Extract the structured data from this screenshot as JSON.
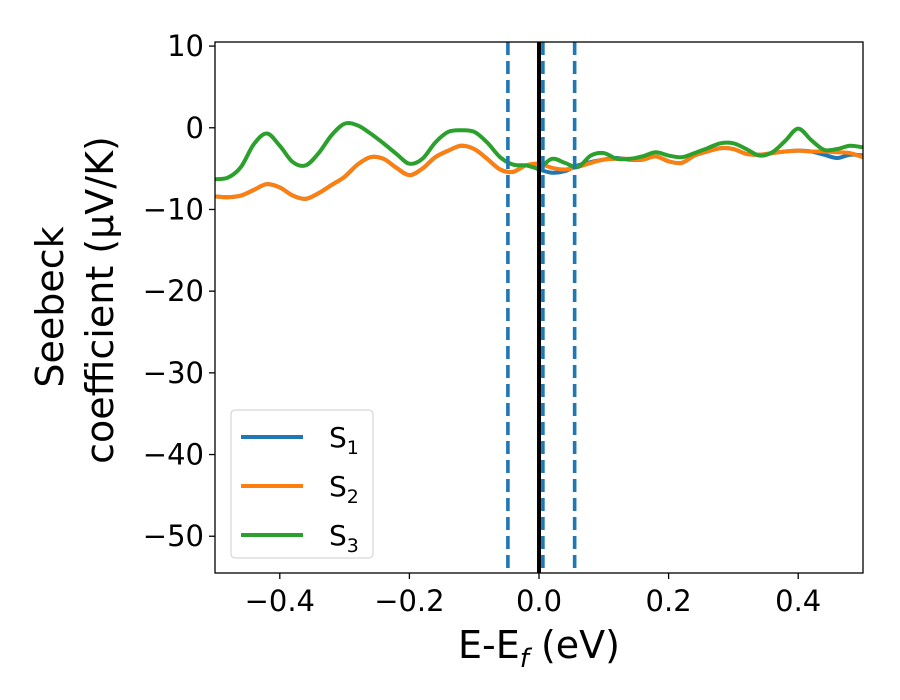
{
  "chart_data": {
    "type": "line",
    "title": "",
    "xlabel": "E-E",
    "xlabel_sub": "f",
    "xlabel_suffix": " (eV)",
    "ylabel_line1": "Seebeck",
    "ylabel_line2": "coefficient  (μV/K)",
    "xlim": [
      -0.5,
      0.5
    ],
    "ylim": [
      -54.5,
      10.5
    ],
    "xticks": [
      -0.4,
      -0.2,
      0.0,
      0.2,
      0.4
    ],
    "xtick_labels": [
      "−0.4",
      "−0.2",
      "0.0",
      "0.2",
      "0.4"
    ],
    "yticks": [
      10,
      0,
      -10,
      -20,
      -30,
      -40,
      -50
    ],
    "ytick_labels": [
      "10",
      "0",
      "−10",
      "−20",
      "−30",
      "−40",
      "−50"
    ],
    "grid": false,
    "legend_position": "lower-left",
    "vlines": [
      {
        "x": -0.048,
        "style": "dashed",
        "color": "#1f77b4"
      },
      {
        "x": 0.0,
        "style": "solid",
        "color": "#000000"
      },
      {
        "x": 0.006,
        "style": "dashed",
        "color": "#1f77b4"
      },
      {
        "x": 0.055,
        "style": "dashed",
        "color": "#1f77b4"
      }
    ],
    "series": [
      {
        "name": "S",
        "sub": "1",
        "color": "#1f77b4",
        "x": [
          -0.5,
          -0.48,
          -0.46,
          -0.44,
          -0.42,
          -0.4,
          -0.38,
          -0.36,
          -0.34,
          -0.32,
          -0.3,
          -0.28,
          -0.26,
          -0.24,
          -0.22,
          -0.2,
          -0.18,
          -0.16,
          -0.14,
          -0.12,
          -0.1,
          -0.08,
          -0.06,
          -0.04,
          -0.02,
          0.0,
          0.02,
          0.04,
          0.06,
          0.08,
          0.1,
          0.12,
          0.14,
          0.16,
          0.18,
          0.2,
          0.22,
          0.24,
          0.26,
          0.28,
          0.3,
          0.32,
          0.34,
          0.36,
          0.38,
          0.4,
          0.42,
          0.44,
          0.46,
          0.48,
          0.5
        ],
        "y": [
          -8.4,
          -8.5,
          -8.3,
          -7.6,
          -6.9,
          -7.3,
          -8.3,
          -8.7,
          -8.0,
          -7.0,
          -6.0,
          -4.5,
          -3.6,
          -3.8,
          -4.9,
          -5.8,
          -5.0,
          -3.6,
          -2.8,
          -2.2,
          -2.6,
          -3.8,
          -5.1,
          -5.4,
          -4.6,
          -5.1,
          -5.5,
          -5.3,
          -4.6,
          -4.2,
          -3.9,
          -3.7,
          -3.9,
          -3.9,
          -3.5,
          -4.1,
          -4.3,
          -3.4,
          -2.9,
          -2.5,
          -2.6,
          -3.2,
          -3.3,
          -3.1,
          -2.9,
          -2.8,
          -2.9,
          -3.3,
          -3.7,
          -3.3,
          -3.4
        ]
      },
      {
        "name": "S",
        "sub": "2",
        "color": "#ff7f0e",
        "x": [
          -0.5,
          -0.48,
          -0.46,
          -0.44,
          -0.42,
          -0.4,
          -0.38,
          -0.36,
          -0.34,
          -0.32,
          -0.3,
          -0.28,
          -0.26,
          -0.24,
          -0.22,
          -0.2,
          -0.18,
          -0.16,
          -0.14,
          -0.12,
          -0.1,
          -0.08,
          -0.06,
          -0.04,
          -0.02,
          0.0,
          0.02,
          0.04,
          0.06,
          0.08,
          0.1,
          0.12,
          0.14,
          0.16,
          0.18,
          0.2,
          0.22,
          0.24,
          0.26,
          0.28,
          0.3,
          0.32,
          0.34,
          0.36,
          0.38,
          0.4,
          0.42,
          0.44,
          0.46,
          0.48,
          0.5
        ],
        "y": [
          -8.4,
          -8.5,
          -8.3,
          -7.6,
          -6.9,
          -7.3,
          -8.3,
          -8.7,
          -8.0,
          -7.0,
          -6.0,
          -4.5,
          -3.6,
          -3.8,
          -4.9,
          -5.8,
          -5.0,
          -3.6,
          -2.8,
          -2.2,
          -2.6,
          -3.8,
          -5.1,
          -5.4,
          -4.6,
          -4.4,
          -4.9,
          -5.1,
          -4.8,
          -4.3,
          -3.9,
          -3.8,
          -3.8,
          -3.9,
          -3.5,
          -4.1,
          -4.3,
          -3.4,
          -2.9,
          -2.5,
          -2.6,
          -3.2,
          -3.3,
          -3.1,
          -2.9,
          -2.8,
          -2.9,
          -2.9,
          -3.0,
          -3.1,
          -3.6
        ]
      },
      {
        "name": "S",
        "sub": "3",
        "color": "#2ca02c",
        "x": [
          -0.5,
          -0.48,
          -0.46,
          -0.44,
          -0.42,
          -0.4,
          -0.38,
          -0.36,
          -0.34,
          -0.32,
          -0.3,
          -0.28,
          -0.26,
          -0.24,
          -0.22,
          -0.2,
          -0.18,
          -0.16,
          -0.14,
          -0.12,
          -0.1,
          -0.08,
          -0.06,
          -0.04,
          -0.02,
          0.0,
          0.02,
          0.04,
          0.06,
          0.08,
          0.1,
          0.12,
          0.14,
          0.16,
          0.18,
          0.2,
          0.22,
          0.24,
          0.26,
          0.28,
          0.3,
          0.32,
          0.34,
          0.36,
          0.38,
          0.4,
          0.42,
          0.44,
          0.46,
          0.48,
          0.5
        ],
        "y": [
          -6.3,
          -6.1,
          -4.8,
          -2.0,
          -0.7,
          -2.2,
          -4.2,
          -4.6,
          -3.1,
          -0.9,
          0.5,
          0.3,
          -0.7,
          -1.9,
          -3.2,
          -4.4,
          -3.8,
          -1.8,
          -0.5,
          -0.3,
          -0.5,
          -1.8,
          -3.6,
          -4.5,
          -4.6,
          -4.9,
          -3.8,
          -4.3,
          -4.8,
          -3.4,
          -3.1,
          -3.8,
          -3.8,
          -3.5,
          -3.0,
          -3.4,
          -3.6,
          -3.1,
          -2.5,
          -1.9,
          -1.9,
          -2.6,
          -3.4,
          -3.0,
          -1.6,
          -0.1,
          -1.5,
          -2.7,
          -2.6,
          -2.2,
          -2.4
        ]
      }
    ]
  }
}
